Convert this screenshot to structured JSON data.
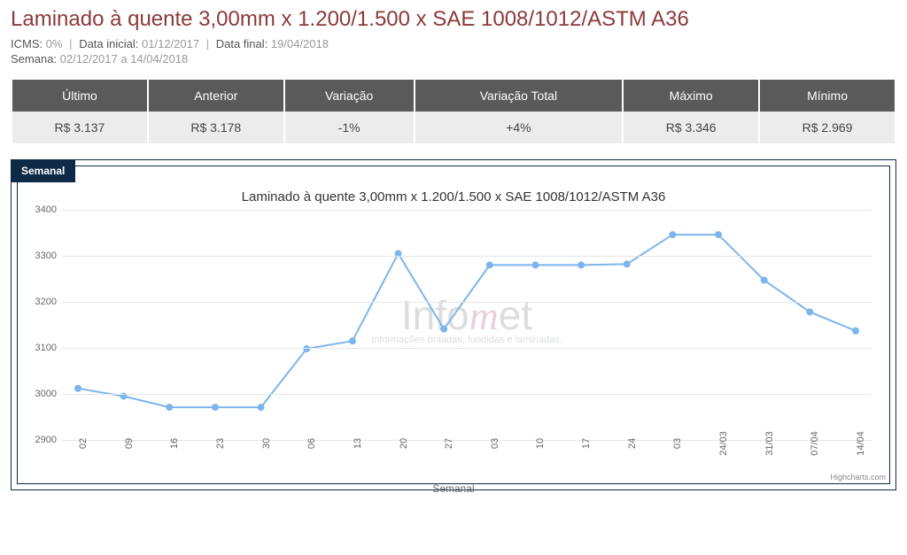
{
  "header": {
    "title": "Laminado à quente 3,00mm x 1.200/1.500 x SAE 1008/1012/ASTM A36",
    "icms_label": "ICMS:",
    "icms_value": "0%",
    "data_inicial_label": "Data inicial:",
    "data_inicial_value": "01/12/2017",
    "data_final_label": "Data final:",
    "data_final_value": "19/04/2018",
    "semana_label": "Semana:",
    "semana_value": "02/12/2017 a 14/04/2018"
  },
  "summary": {
    "cols": [
      "Último",
      "Anterior",
      "Variação",
      "Variação Total",
      "Máximo",
      "Mínimo"
    ],
    "vals": [
      "R$ 3.137",
      "R$ 3.178",
      "-1%",
      "+4%",
      "R$ 3.346",
      "R$ 2.969"
    ],
    "val_classes": [
      "",
      "",
      "neg",
      "pos",
      "",
      ""
    ]
  },
  "chart": {
    "tab_label": "Semanal",
    "title": "Laminado à quente 3,00mm x 1.200/1.500 x SAE 1008/1012/ASTM A36",
    "type": "line",
    "ylim": [
      2900,
      3400
    ],
    "ytick_step": 100,
    "yticks": [
      2900,
      3000,
      3100,
      3200,
      3300,
      3400
    ],
    "x_labels": [
      "02",
      "09",
      "16",
      "23",
      "30",
      "06",
      "13",
      "20",
      "27",
      "03",
      "10",
      "17",
      "24",
      "03",
      "24/03",
      "31/03",
      "07/04",
      "14/04"
    ],
    "values": [
      3012,
      2995,
      2971,
      2971,
      2971,
      3098,
      3115,
      3305,
      3141,
      3280,
      3280,
      3280,
      3282,
      3346,
      3346,
      3247,
      3178,
      3137
    ],
    "line_color": "#7cb5ec",
    "marker_color": "#7cb5ec",
    "marker_radius": 4,
    "line_width": 2,
    "grid_color": "#e6e6e6",
    "background_color": "#ffffff",
    "xaxis_title": "Semanal",
    "chart_font_family": "Lucida Sans Unicode, Lucida Grande, Arial, sans-serif",
    "title_fontsize": 15,
    "axis_label_fontsize": 11,
    "axis_label_color": "#666666",
    "credit": "Highcharts.com",
    "watermark_main_pre": "Info",
    "watermark_main_m": "m",
    "watermark_main_post": "et",
    "watermark_sub": "Informações britadas, fundidas e laminadas."
  }
}
